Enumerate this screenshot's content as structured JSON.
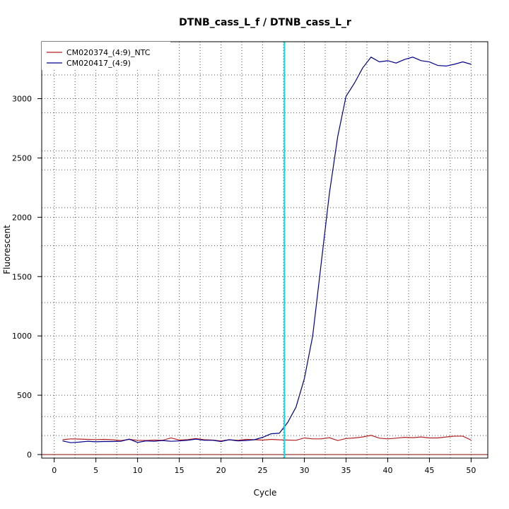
{
  "chart_data": {
    "type": "line",
    "title": "DTNB_cass_L_f / DTNB_cass_L_r",
    "xlabel": "Cycle",
    "ylabel": "Fluorescent",
    "xlim": [
      -1.5,
      52
    ],
    "ylim": [
      -30,
      3480
    ],
    "xticks": [
      0,
      5,
      10,
      15,
      20,
      25,
      30,
      35,
      40,
      45,
      50
    ],
    "yticks": [
      0,
      500,
      1000,
      1500,
      2000,
      2500,
      3000
    ],
    "xticks_minor": [
      2.5,
      7.5,
      12.5,
      17.5,
      22.5,
      27.5,
      32.5,
      37.5,
      42.5,
      47.5
    ],
    "yticks_minor": [
      160,
      320,
      800,
      1280,
      1760,
      2080,
      2400,
      2560,
      2880,
      3200
    ],
    "grid": true,
    "legend_position": "top-left",
    "threshold_line_y": 0,
    "threshold_color": "#8B0000",
    "vertical_marker_x": 27.6,
    "vertical_marker_color": "#00E5EE",
    "x": [
      1,
      2,
      3,
      4,
      5,
      6,
      7,
      8,
      9,
      10,
      11,
      12,
      13,
      14,
      15,
      16,
      17,
      18,
      19,
      20,
      21,
      22,
      23,
      24,
      25,
      26,
      27,
      28,
      29,
      30,
      31,
      32,
      33,
      34,
      35,
      36,
      37,
      38,
      39,
      40,
      41,
      42,
      43,
      44,
      45,
      46,
      47,
      48,
      49,
      50
    ],
    "series": [
      {
        "name": "CM020374_(4:9)_NTC",
        "color": "#B22222",
        "values": [
          125,
          132,
          130,
          128,
          126,
          128,
          124,
          118,
          128,
          120,
          118,
          122,
          120,
          140,
          122,
          126,
          135,
          125,
          122,
          115,
          125,
          120,
          128,
          125,
          122,
          128,
          124,
          122,
          120,
          140,
          132,
          132,
          142,
          118,
          135,
          140,
          148,
          162,
          138,
          132,
          138,
          145,
          142,
          148,
          140,
          140,
          148,
          155,
          155,
          122
        ]
      },
      {
        "name": "CM020417_(4:9)",
        "color": "#00008B",
        "values": [
          115,
          100,
          105,
          112,
          108,
          110,
          110,
          112,
          130,
          102,
          115,
          112,
          118,
          112,
          115,
          120,
          130,
          120,
          120,
          110,
          125,
          115,
          118,
          125,
          145,
          175,
          180,
          270,
          400,
          640,
          1000,
          1600,
          2200,
          2680,
          3020,
          3130,
          3260,
          3350,
          3310,
          3320,
          3300,
          3330,
          3350,
          3320,
          3310,
          3280,
          3275,
          3290,
          3310,
          3290
        ]
      }
    ]
  }
}
